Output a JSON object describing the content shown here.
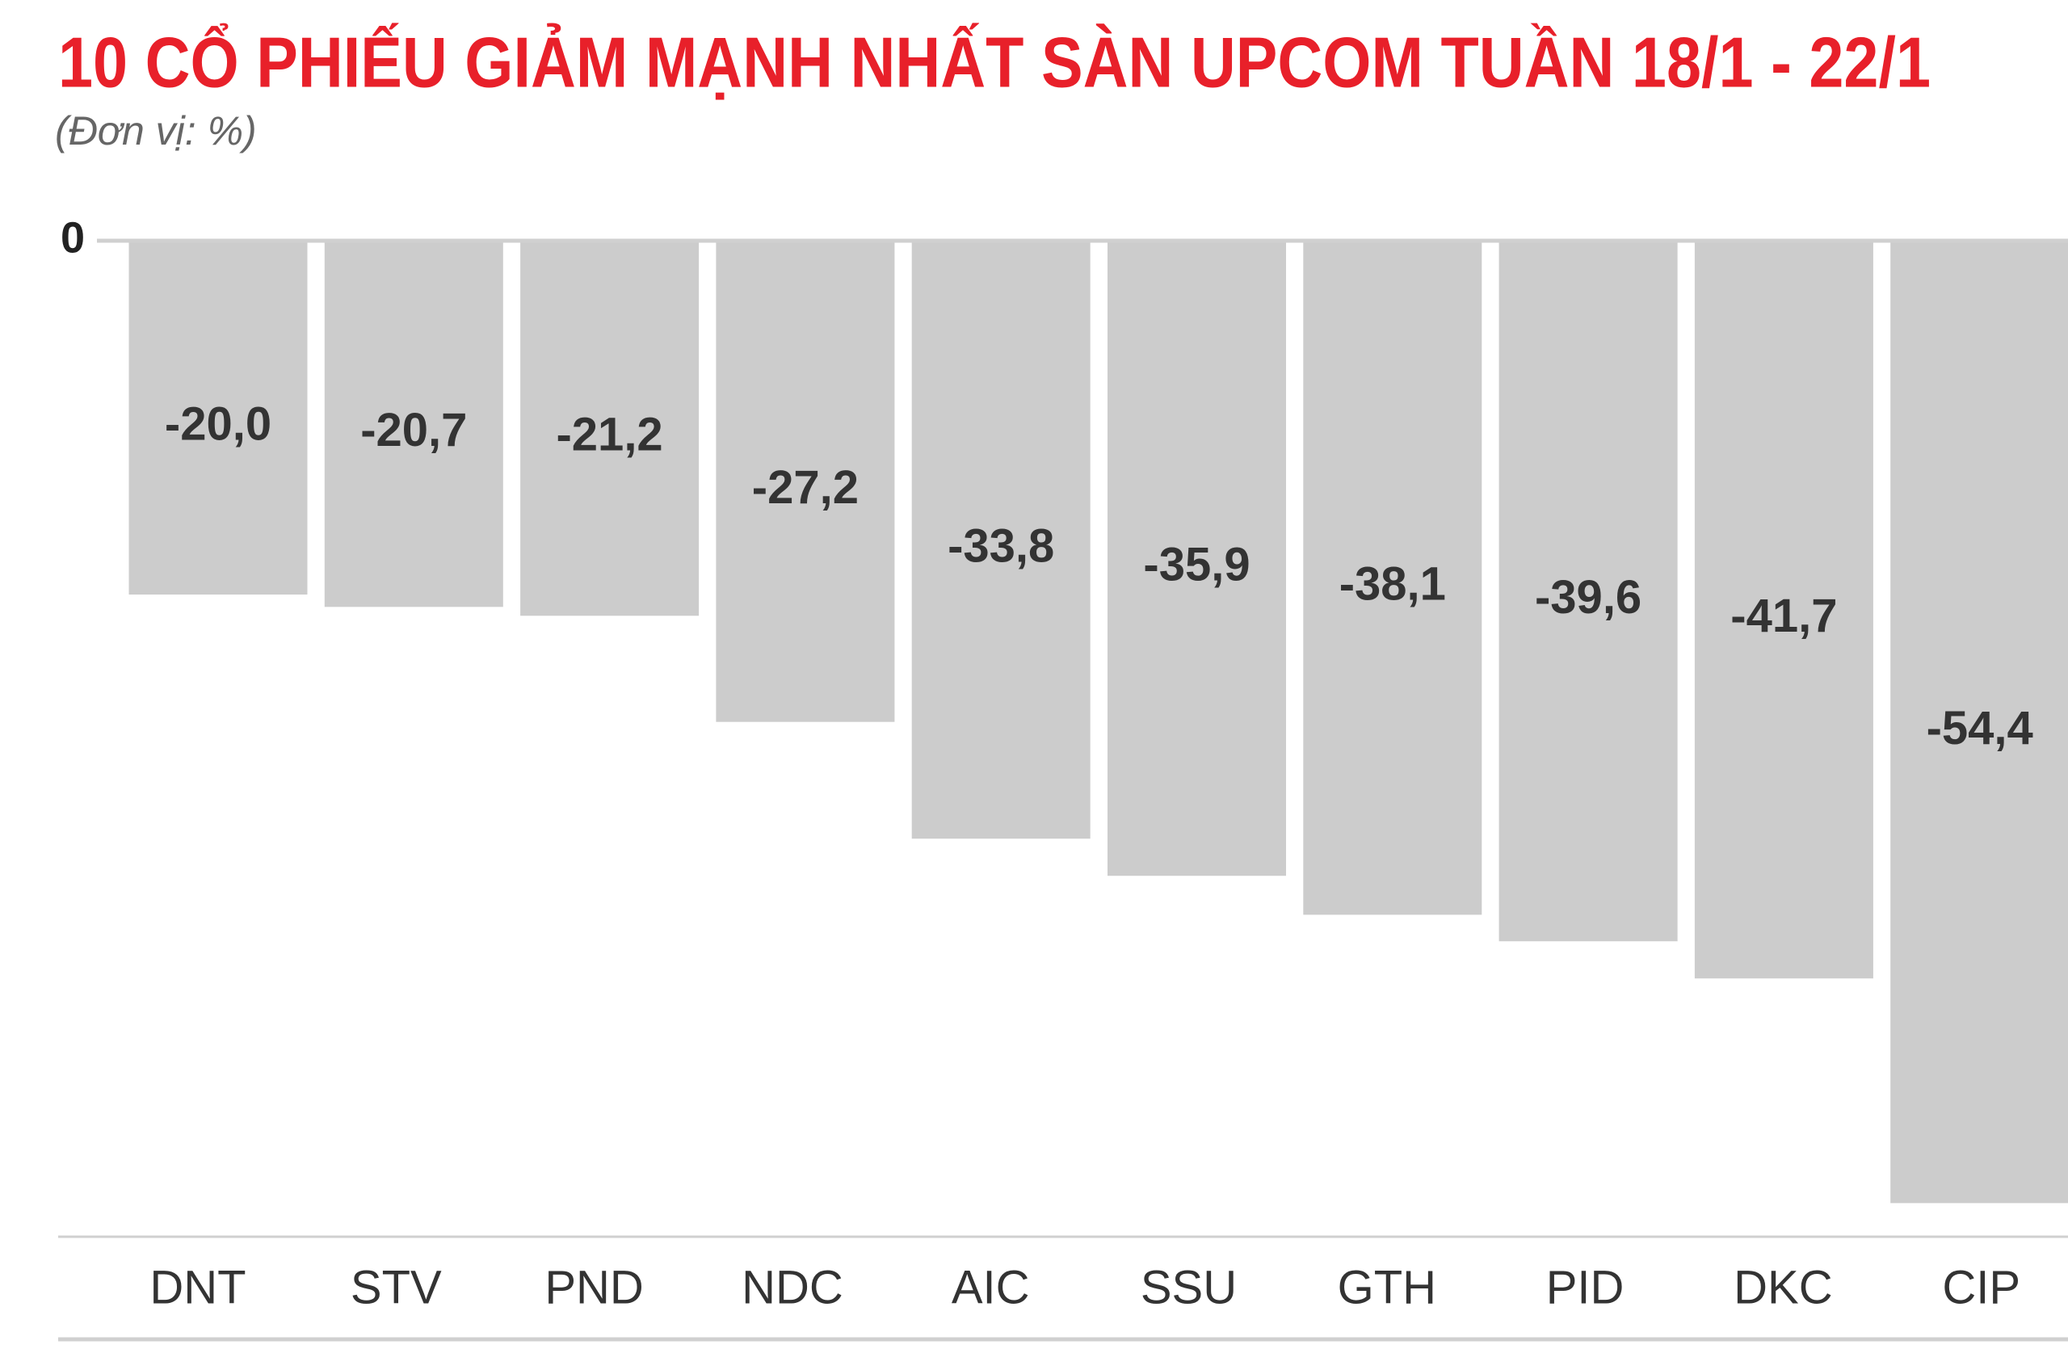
{
  "chart_data": {
    "type": "bar",
    "title": "10 CỔ PHIẾU GIẢM MẠNH NHẤT SÀN UPCOM TUẦN 18/1 - 22/1",
    "subtitle": "(Đơn vị: %)",
    "categories": [
      "DNT",
      "STV",
      "PND",
      "NDC",
      "AIC",
      "SSU",
      "GTH",
      "PID",
      "DKC",
      "CIP"
    ],
    "values": [
      -20.0,
      -20.7,
      -21.2,
      -27.2,
      -33.8,
      -35.9,
      -38.1,
      -39.6,
      -41.7,
      -54.4
    ],
    "value_labels": [
      "-20,0",
      "-20,7",
      "-21,2",
      "-27,2",
      "-33,8",
      "-35,9",
      "-38,1",
      "-39,6",
      "-41,7",
      "-54,4"
    ],
    "color": "#cccccc",
    "ylim": [
      -56.3,
      0
    ],
    "yticks": [
      0
    ]
  }
}
